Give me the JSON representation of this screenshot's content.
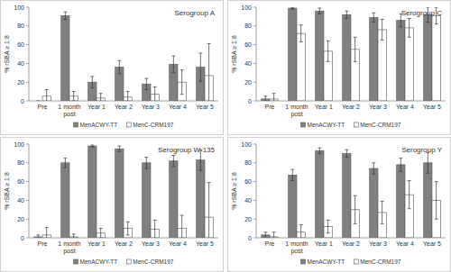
{
  "chart_data": [
    {
      "type": "bar",
      "title": "Serogroup A",
      "ylabel": "% rSBA ≥ 1:8",
      "categories": [
        "Pre",
        "1 month post",
        "Year 1",
        "Year 2",
        "Year 3",
        "Year 4",
        "Year 5"
      ],
      "series": [
        {
          "name": "MenACWY-TT",
          "color": "#808080",
          "values": [
            0,
            91,
            20,
            36,
            18,
            39,
            36
          ],
          "errors": [
            0,
            4,
            6,
            7,
            6,
            9,
            15
          ]
        },
        {
          "name": "MenC-CRM197",
          "color": "#ffffff",
          "values": [
            5,
            5,
            3,
            4,
            7,
            20,
            27
          ],
          "errors": [
            7,
            5,
            5,
            6,
            8,
            13,
            34
          ]
        }
      ],
      "ylim": [
        0,
        100
      ],
      "yticks": [
        0,
        20,
        40,
        60,
        80,
        100
      ],
      "grid": false,
      "legend": "bottom"
    },
    {
      "type": "bar",
      "title": "Serogroup C",
      "ylabel": "% rSBA ≥ 1:8",
      "categories": [
        "Pre",
        "1 month post",
        "Year 1",
        "Year 2",
        "Year 3",
        "Year 4",
        "Year 5"
      ],
      "series": [
        {
          "name": "MenACWY-TT",
          "color": "#808080",
          "values": [
            2,
            99,
            96,
            92,
            89,
            86,
            92
          ],
          "errors": [
            3,
            1,
            3,
            4,
            5,
            7,
            8
          ]
        },
        {
          "name": "MenC-CRM197",
          "color": "#ffffff",
          "values": [
            2,
            72,
            53,
            55,
            76,
            78,
            91
          ],
          "errors": [
            6,
            9,
            11,
            13,
            11,
            10,
            9
          ]
        }
      ],
      "ylim": [
        0,
        100
      ],
      "yticks": [
        0,
        20,
        40,
        60,
        80,
        100
      ],
      "grid": false,
      "legend": "bottom"
    },
    {
      "type": "bar",
      "title": "Serogroup W-135",
      "ylabel": "% rSBA ≥ 1:8",
      "categories": [
        "Pre",
        "1 month post",
        "Year 1",
        "Year 2",
        "Year 3",
        "Year 4",
        "Year 5"
      ],
      "series": [
        {
          "name": "MenACWY-TT",
          "color": "#808080",
          "values": [
            1,
            80,
            98,
            95,
            80,
            82,
            83
          ],
          "errors": [
            2,
            5,
            1,
            3,
            6,
            6,
            11
          ]
        },
        {
          "name": "MenC-CRM197",
          "color": "#ffffff",
          "values": [
            3,
            1,
            5,
            10,
            9,
            10,
            22
          ],
          "errors": [
            8,
            3,
            5,
            7,
            10,
            14,
            37
          ]
        }
      ],
      "ylim": [
        0,
        100
      ],
      "yticks": [
        0,
        20,
        40,
        60,
        80,
        100
      ],
      "grid": false,
      "legend": "bottom"
    },
    {
      "type": "bar",
      "title": "Serogroup Y",
      "ylabel": "% rSBA ≥ 1:8",
      "categories": [
        "Pre",
        "1 month post",
        "Year 1",
        "Year 2",
        "Year 3",
        "Year 4",
        "Year 5"
      ],
      "series": [
        {
          "name": "MenACWY-TT",
          "color": "#808080",
          "values": [
            3,
            67,
            93,
            90,
            74,
            78,
            80
          ],
          "errors": [
            3,
            6,
            3,
            4,
            6,
            7,
            11
          ]
        },
        {
          "name": "MenC-CRM197",
          "color": "#ffffff",
          "values": [
            1,
            6,
            12,
            30,
            27,
            46,
            40
          ],
          "errors": [
            5,
            8,
            7,
            15,
            12,
            15,
            20
          ]
        }
      ],
      "ylim": [
        0,
        100
      ],
      "yticks": [
        0,
        20,
        40,
        60,
        80,
        100
      ],
      "grid": false,
      "legend": "bottom"
    }
  ]
}
